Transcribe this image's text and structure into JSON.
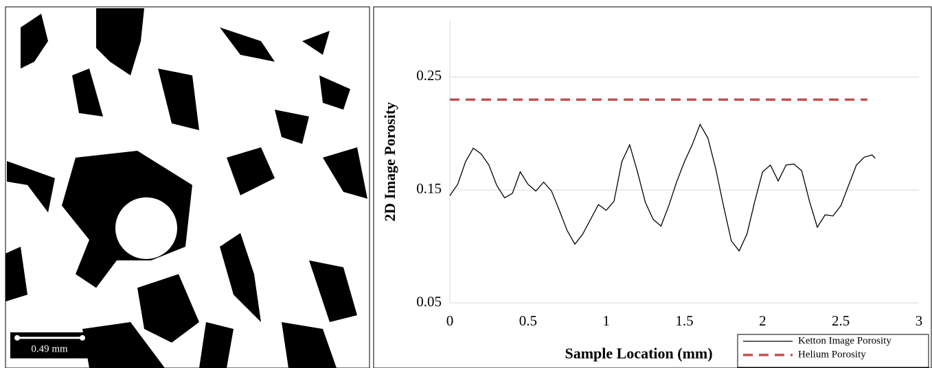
{
  "image": {
    "scale_bar": "0.49 mm"
  },
  "chart_data": {
    "type": "line",
    "x_label": "Sample Location (mm)",
    "y_label": "2D Image Porosity",
    "xlim": [
      0,
      3
    ],
    "xticks": [
      0,
      0.5,
      1,
      1.5,
      2,
      2.5,
      3
    ],
    "ylim": [
      0.05,
      0.3
    ],
    "yticks": [
      0.05,
      0.15,
      0.25
    ],
    "grid": true,
    "legend": "lower right",
    "series": [
      {
        "name": "Ketton Image Porosity",
        "color": "#000000",
        "dash": "solid",
        "x": [
          0,
          0.05,
          0.1,
          0.15,
          0.2,
          0.25,
          0.3,
          0.35,
          0.4,
          0.45,
          0.5,
          0.55,
          0.6,
          0.65,
          0.7,
          0.75,
          0.8,
          0.85,
          0.9,
          0.95,
          1.0,
          1.05,
          1.1,
          1.15,
          1.2,
          1.25,
          1.3,
          1.35,
          1.4,
          1.45,
          1.5,
          1.55,
          1.6,
          1.65,
          1.7,
          1.75,
          1.8,
          1.85,
          1.9,
          1.95,
          2.0,
          2.05,
          2.1,
          2.15,
          2.2,
          2.25,
          2.3,
          2.35,
          2.4,
          2.45,
          2.5,
          2.55,
          2.6,
          2.65,
          2.7,
          2.72
        ],
        "values": [
          0.145,
          0.155,
          0.175,
          0.187,
          0.182,
          0.172,
          0.154,
          0.143,
          0.147,
          0.166,
          0.155,
          0.149,
          0.157,
          0.149,
          0.132,
          0.114,
          0.102,
          0.111,
          0.124,
          0.137,
          0.132,
          0.14,
          0.175,
          0.19,
          0.166,
          0.139,
          0.124,
          0.118,
          0.136,
          0.157,
          0.175,
          0.19,
          0.208,
          0.196,
          0.169,
          0.136,
          0.105,
          0.096,
          0.111,
          0.14,
          0.166,
          0.172,
          0.158,
          0.172,
          0.173,
          0.167,
          0.14,
          0.117,
          0.128,
          0.127,
          0.136,
          0.154,
          0.172,
          0.179,
          0.181,
          0.178
        ]
      },
      {
        "name": "Helium Porosity",
        "color": "#c0504d",
        "dash": "dashed",
        "x": [
          0,
          2.67
        ],
        "values": [
          0.23,
          0.23
        ]
      }
    ]
  }
}
